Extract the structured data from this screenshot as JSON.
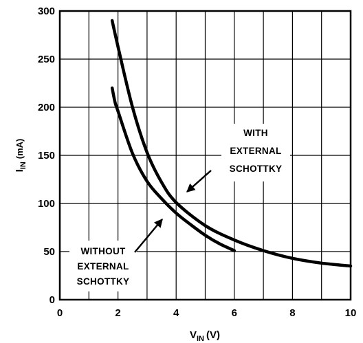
{
  "chart_data": {
    "type": "line",
    "title": "",
    "xlabel": {
      "main": "V",
      "sub": "IN",
      "unit": "(V)"
    },
    "ylabel": {
      "main": "I",
      "sub": "IN",
      "unit": "(mA)"
    },
    "xlim": [
      0,
      10
    ],
    "ylim": [
      0,
      300
    ],
    "x_ticks": [
      0,
      2,
      4,
      6,
      8,
      10
    ],
    "y_ticks": [
      0,
      50,
      100,
      150,
      200,
      250,
      300
    ],
    "x_grid_step": 1,
    "y_grid_step": 50,
    "grid": true,
    "series": [
      {
        "id": "with",
        "x": [
          1.8,
          2.0,
          2.5,
          3.0,
          3.5,
          4.0,
          5.0,
          6.0,
          7.0,
          8.0,
          9.0,
          10.0
        ],
        "values": [
          290,
          263,
          200,
          153,
          122,
          101,
          77,
          62,
          51,
          43,
          38,
          35
        ]
      },
      {
        "id": "without",
        "x": [
          1.8,
          1.9,
          2.0,
          2.5,
          3.0,
          3.5,
          4.0,
          4.5,
          5.0,
          5.5,
          6.0
        ],
        "values": [
          220,
          205,
          196,
          152,
          123,
          105,
          90,
          78,
          67,
          58,
          51
        ]
      }
    ],
    "annotations": [
      {
        "id": "with",
        "lines": [
          "WITH",
          "EXTERNAL",
          "SCHOTTKY"
        ]
      },
      {
        "id": "without",
        "lines": [
          "WITHOUT",
          "EXTERNAL",
          "SCHOTTKY"
        ]
      }
    ]
  }
}
